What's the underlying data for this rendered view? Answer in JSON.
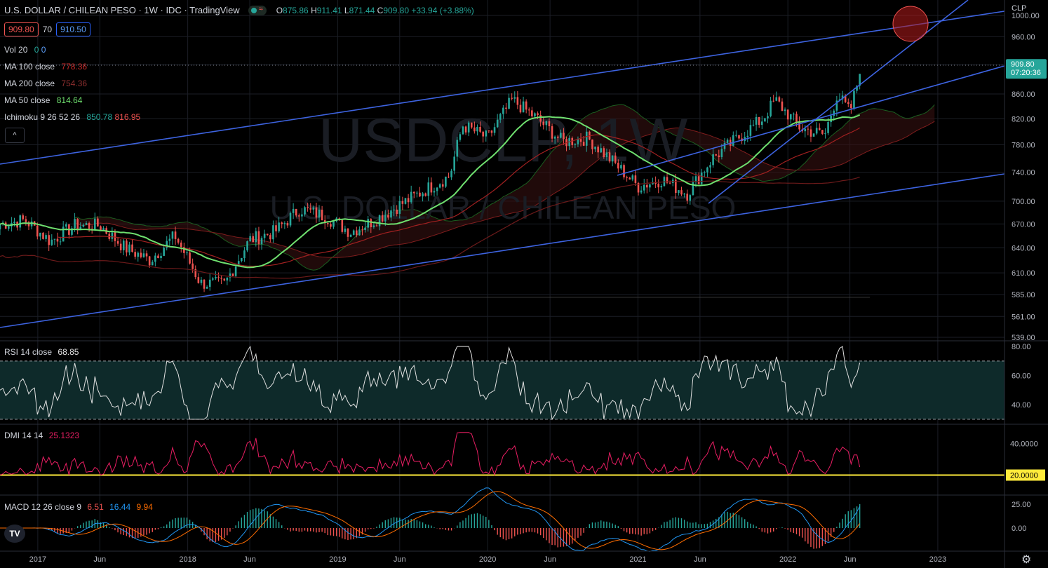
{
  "header": {
    "title": "U.S. DOLLAR / CHILEAN PESO · 1W · IDC · TradingView",
    "open_label": "O",
    "open": "875.86",
    "high_label": "H",
    "high": "911.41",
    "low_label": "L",
    "low": "871.44",
    "close_label": "C",
    "close": "909.80",
    "change": "+33.94 (+3.88%)",
    "bid": "909.80",
    "spread": "70",
    "ask": "910.50"
  },
  "indicators": {
    "vol": {
      "label": "Vol 20",
      "v1": "0",
      "v2": "0"
    },
    "ma100": {
      "label": "MA 100 close",
      "value": "778.36"
    },
    "ma200": {
      "label": "MA 200 close",
      "value": "754.36"
    },
    "ma50": {
      "label": "MA 50 close",
      "value": "814.64"
    },
    "ichimoku": {
      "label": "Ichimoku 9 26 52 26",
      "v1": "850.78",
      "v2": "816.95"
    },
    "collapse_icon": "^"
  },
  "watermark": {
    "symbol": "USDCLP, 1W",
    "name": "U.S. DOLLAR / CHILEAN PESO"
  },
  "currency": "CLP",
  "price_axis": {
    "ticks": [
      "1000.00",
      "960.00",
      "909.80",
      "860.00",
      "820.00",
      "780.00",
      "740.00",
      "700.00",
      "670.00",
      "640.00",
      "610.00",
      "585.00",
      "561.00",
      "539.00"
    ],
    "last_price": "909.80",
    "countdown": "07:20:36"
  },
  "panes": {
    "rsi": {
      "label": "RSI 14 close",
      "value": "68.85",
      "ticks": [
        "80.00",
        "60.00",
        "40.00"
      ]
    },
    "dmi": {
      "label": "DMI 14 14",
      "value": "25.1323",
      "ticks": [
        "40.0000"
      ],
      "level": "20.0000"
    },
    "macd": {
      "label": "MACD 12 26 close 9",
      "v1": "6.51",
      "v2": "16.44",
      "v3": "9.94",
      "ticks": [
        "25.00",
        "0.00"
      ]
    }
  },
  "time_axis": [
    "2017",
    "Jun",
    "2018",
    "Jun",
    "2019",
    "Jun",
    "2020",
    "Jun",
    "2021",
    "Jun",
    "2022",
    "Jun",
    "2023"
  ],
  "logo_text": "TV",
  "colors": {
    "up": "#26a69a",
    "down": "#ef5350",
    "trend": "#3d63e0",
    "ma50": "#6fe06f",
    "ma_red": "#c62828",
    "rsi_band": "#0e2a2a",
    "dmi_level": "#ffeb3b"
  },
  "chart_data": {
    "type": "candlestick",
    "title": "U.S. DOLLAR / CHILEAN PESO",
    "interval": "1W",
    "y_axis_scale": "log",
    "ylim": [
      539,
      1000
    ],
    "price_anchors": [
      {
        "date": "2016-10",
        "close": 670
      },
      {
        "date": "2016-12",
        "close": 675
      },
      {
        "date": "2017-02",
        "close": 648
      },
      {
        "date": "2017-04",
        "close": 668
      },
      {
        "date": "2017-06",
        "close": 668
      },
      {
        "date": "2017-08",
        "close": 640
      },
      {
        "date": "2017-10",
        "close": 625
      },
      {
        "date": "2017-12",
        "close": 655
      },
      {
        "date": "2018-02",
        "close": 598
      },
      {
        "date": "2018-04",
        "close": 597
      },
      {
        "date": "2018-06",
        "close": 650
      },
      {
        "date": "2018-08",
        "close": 660
      },
      {
        "date": "2018-10",
        "close": 690
      },
      {
        "date": "2018-12",
        "close": 680
      },
      {
        "date": "2019-02",
        "close": 660
      },
      {
        "date": "2019-04",
        "close": 675
      },
      {
        "date": "2019-06",
        "close": 695
      },
      {
        "date": "2019-08",
        "close": 715
      },
      {
        "date": "2019-10",
        "close": 735
      },
      {
        "date": "2019-11",
        "close": 810
      },
      {
        "date": "2020-01",
        "close": 790
      },
      {
        "date": "2020-03",
        "close": 850
      },
      {
        "date": "2020-05",
        "close": 820
      },
      {
        "date": "2020-07",
        "close": 785
      },
      {
        "date": "2020-09",
        "close": 790
      },
      {
        "date": "2020-11",
        "close": 755
      },
      {
        "date": "2021-01",
        "close": 720
      },
      {
        "date": "2021-03",
        "close": 730
      },
      {
        "date": "2021-05",
        "close": 710
      },
      {
        "date": "2021-07",
        "close": 760
      },
      {
        "date": "2021-09",
        "close": 790
      },
      {
        "date": "2021-11",
        "close": 820
      },
      {
        "date": "2021-12",
        "close": 850
      },
      {
        "date": "2022-02",
        "close": 805
      },
      {
        "date": "2022-04",
        "close": 795
      },
      {
        "date": "2022-05",
        "close": 860
      },
      {
        "date": "2022-06",
        "close": 830
      },
      {
        "date": "2022-07",
        "close": 909.8
      }
    ],
    "indicators": {
      "rsi": {
        "ylim": [
          28,
          82
        ],
        "overbought": 70,
        "oversold": 30,
        "last": 68.85
      },
      "dmi": {
        "level": 20,
        "last": 25.1323
      },
      "macd": {
        "macd": 6.51,
        "signal": 16.44,
        "hist": 9.94
      }
    }
  }
}
